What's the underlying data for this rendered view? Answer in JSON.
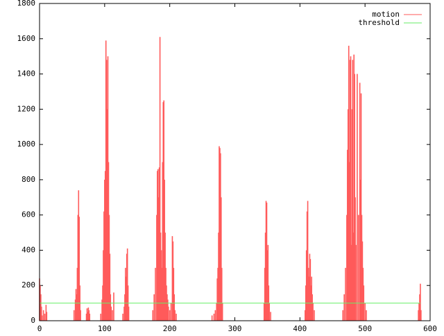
{
  "chart_data": {
    "type": "impulse",
    "xlim": [
      0,
      600
    ],
    "xticks": [
      0,
      100,
      200,
      300,
      400,
      500,
      600
    ],
    "ylim": [
      0,
      1800
    ],
    "yticks": [
      0,
      200,
      400,
      600,
      800,
      1000,
      1200,
      1400,
      1600,
      1800
    ],
    "legend": "top-right",
    "series": [
      {
        "name": "motion",
        "color": "#ff5a5a",
        "style": "impulses",
        "x": [
          0,
          1,
          2,
          3,
          4,
          6,
          8,
          10,
          11,
          53,
          55,
          56,
          57,
          58,
          59,
          60,
          61,
          62,
          63,
          72,
          73,
          74,
          75,
          76,
          77,
          94,
          96,
          97,
          98,
          99,
          100,
          101,
          102,
          103,
          104,
          105,
          106,
          107,
          108,
          109,
          110,
          112,
          114,
          128,
          130,
          131,
          132,
          133,
          134,
          135,
          136,
          137,
          174,
          176,
          178,
          180,
          181,
          182,
          183,
          184,
          185,
          186,
          187,
          188,
          189,
          190,
          191,
          192,
          193,
          194,
          195,
          196,
          197,
          198,
          200,
          202,
          204,
          205,
          206,
          207,
          208,
          210,
          265,
          268,
          270,
          272,
          273,
          274,
          275,
          276,
          277,
          278,
          279,
          280,
          281,
          345,
          346,
          347,
          348,
          349,
          350,
          351,
          352,
          353,
          355,
          408,
          409,
          410,
          411,
          412,
          413,
          414,
          415,
          416,
          417,
          418,
          419,
          420,
          422,
          466,
          468,
          470,
          472,
          473,
          474,
          475,
          476,
          477,
          478,
          479,
          480,
          481,
          482,
          483,
          484,
          485,
          486,
          488,
          490,
          492,
          493,
          494,
          495,
          496,
          497,
          498,
          500,
          502,
          582,
          583,
          584,
          585,
          586
        ],
        "values": [
          240,
          200,
          150,
          80,
          30,
          60,
          40,
          90,
          50,
          60,
          120,
          180,
          150,
          300,
          600,
          740,
          590,
          200,
          60,
          40,
          70,
          50,
          75,
          60,
          40,
          40,
          120,
          200,
          400,
          620,
          800,
          850,
          1590,
          1480,
          1200,
          1500,
          900,
          600,
          380,
          150,
          80,
          60,
          160,
          40,
          80,
          150,
          300,
          250,
          380,
          410,
          200,
          80,
          60,
          150,
          300,
          600,
          850,
          860,
          700,
          870,
          1610,
          500,
          400,
          300,
          900,
          1240,
          1250,
          800,
          500,
          300,
          200,
          150,
          120,
          80,
          60,
          100,
          480,
          450,
          300,
          150,
          60,
          40,
          30,
          40,
          60,
          100,
          240,
          300,
          500,
          990,
          980,
          950,
          700,
          300,
          100,
          100,
          300,
          500,
          680,
          670,
          400,
          430,
          200,
          100,
          50,
          60,
          200,
          400,
          620,
          680,
          300,
          250,
          380,
          350,
          200,
          250,
          150,
          100,
          60,
          60,
          150,
          300,
          600,
          970,
          1200,
          1560,
          900,
          1480,
          1500,
          430,
          1200,
          1480,
          500,
          1510,
          1400,
          700,
          430,
          1400,
          600,
          1350,
          800,
          1290,
          600,
          450,
          300,
          200,
          100,
          60,
          60,
          100,
          150,
          210,
          60
        ]
      },
      {
        "name": "threshold",
        "color": "#66ee66",
        "style": "line",
        "x": [
          0,
          585
        ],
        "values": [
          100,
          100
        ]
      }
    ]
  }
}
